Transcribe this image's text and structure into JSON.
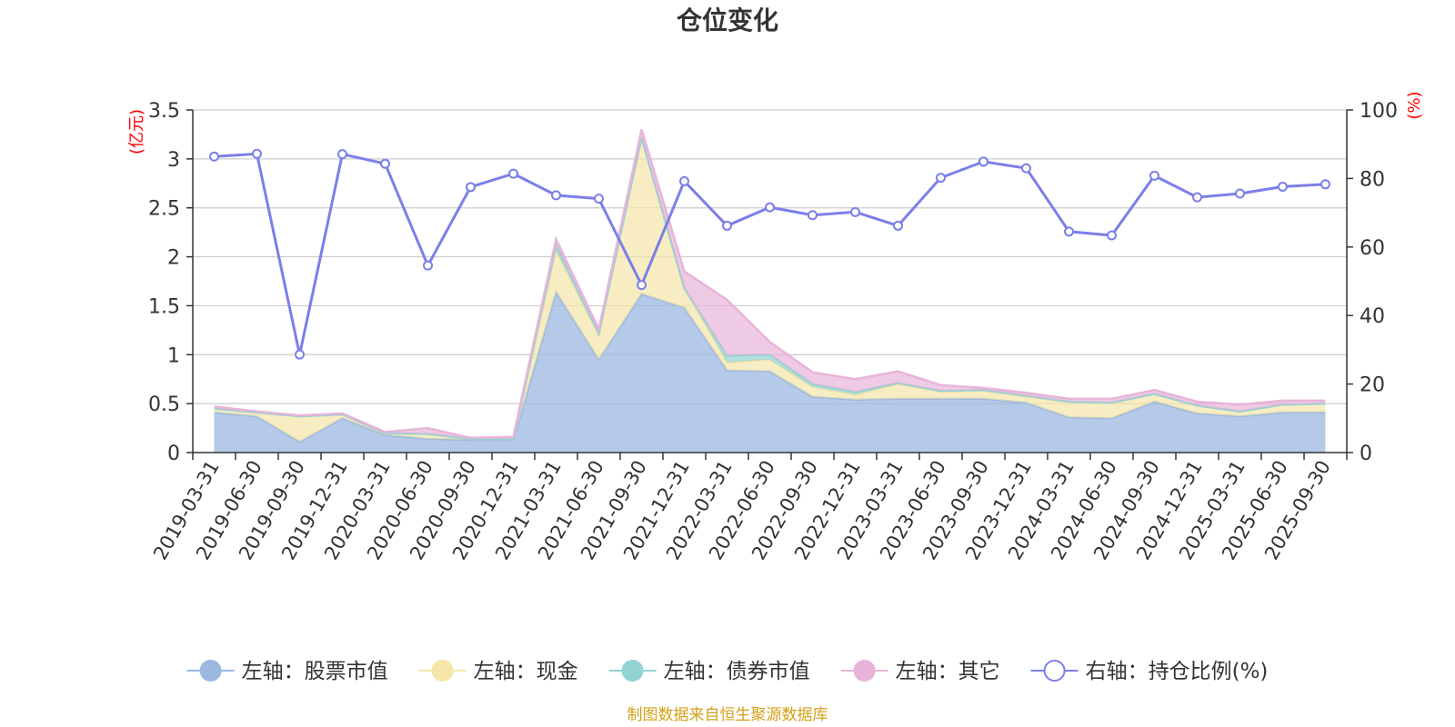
{
  "chart_data": {
    "type": "area",
    "title": "仓位变化",
    "left_unit": "(亿元)",
    "right_unit": "(%)",
    "left_ylim": [
      0,
      3.5
    ],
    "left_ticks": [
      "0",
      "0.5",
      "1",
      "1.5",
      "2",
      "2.5",
      "3",
      "3.5"
    ],
    "right_ylim": [
      0,
      100
    ],
    "right_ticks": [
      "0",
      "20",
      "40",
      "60",
      "80",
      "100"
    ],
    "categories": [
      "2019-03-31",
      "2019-06-30",
      "2019-09-30",
      "2019-12-31",
      "2020-03-31",
      "2020-06-30",
      "2020-09-30",
      "2020-12-31",
      "2021-03-31",
      "2021-06-30",
      "2021-09-30",
      "2021-12-31",
      "2022-03-31",
      "2022-06-30",
      "2022-09-30",
      "2022-12-31",
      "2023-03-31",
      "2023-06-30",
      "2023-09-30",
      "2023-12-31",
      "2024-03-31",
      "2024-06-30",
      "2024-09-30",
      "2024-12-31",
      "2025-03-31",
      "2025-06-30",
      "2025-09-30"
    ],
    "series": [
      {
        "name": "左轴：股票市值",
        "color": "#9cb8e0",
        "values": [
          0.41,
          0.37,
          0.11,
          0.35,
          0.18,
          0.14,
          0.13,
          0.13,
          1.64,
          0.95,
          1.62,
          1.48,
          0.84,
          0.83,
          0.57,
          0.54,
          0.55,
          0.55,
          0.55,
          0.51,
          0.36,
          0.35,
          0.52,
          0.4,
          0.37,
          0.41,
          0.41
        ]
      },
      {
        "name": "左轴：现金",
        "color": "#f5e6a8",
        "values": [
          0.04,
          0.04,
          0.26,
          0.04,
          0.02,
          0.05,
          0.01,
          0.01,
          0.42,
          0.24,
          1.6,
          0.2,
          0.08,
          0.12,
          0.1,
          0.05,
          0.15,
          0.07,
          0.08,
          0.06,
          0.16,
          0.16,
          0.08,
          0.08,
          0.05,
          0.08,
          0.09
        ]
      },
      {
        "name": "左轴：债券市值",
        "color": "#92d3d4",
        "values": [
          0,
          0,
          0,
          0,
          0,
          0,
          0,
          0,
          0.06,
          0.03,
          0,
          0,
          0.07,
          0.05,
          0.03,
          0.03,
          0.01,
          0.01,
          0.01,
          0.01,
          0,
          0,
          0,
          0,
          0,
          0,
          0
        ]
      },
      {
        "name": "左轴：其它",
        "color": "#e8b4d9",
        "values": [
          0.02,
          0.01,
          0.01,
          0.01,
          0.01,
          0.06,
          0.01,
          0.02,
          0.06,
          0.04,
          0.08,
          0.17,
          0.57,
          0.13,
          0.12,
          0.13,
          0.12,
          0.06,
          0.02,
          0.03,
          0.03,
          0.04,
          0.04,
          0.04,
          0.07,
          0.04,
          0.03
        ]
      }
    ],
    "line": {
      "name": "右轴：持仓比例(%)",
      "color": "#7b7fe8",
      "values": [
        86.4,
        87.2,
        28.6,
        87.1,
        84.3,
        54.6,
        77.5,
        81.4,
        75.1,
        74.1,
        48.9,
        79.2,
        66.2,
        71.6,
        69.3,
        70.2,
        66.2,
        80.2,
        84.9,
        83.0,
        64.5,
        63.4,
        80.8,
        74.5,
        75.6,
        77.6,
        78.3
      ]
    },
    "legend": [
      {
        "label": "左轴：股票市值",
        "color": "#9cb8e0",
        "kind": "area"
      },
      {
        "label": "左轴：现金",
        "color": "#f5e6a8",
        "kind": "area"
      },
      {
        "label": "左轴：债券市值",
        "color": "#92d3d4",
        "kind": "area"
      },
      {
        "label": "左轴：其它",
        "color": "#e8b4d9",
        "kind": "area"
      },
      {
        "label": "右轴：持仓比例(%)",
        "color": "#7b7fe8",
        "kind": "line"
      }
    ],
    "source": "制图数据来自恒生聚源数据库"
  }
}
